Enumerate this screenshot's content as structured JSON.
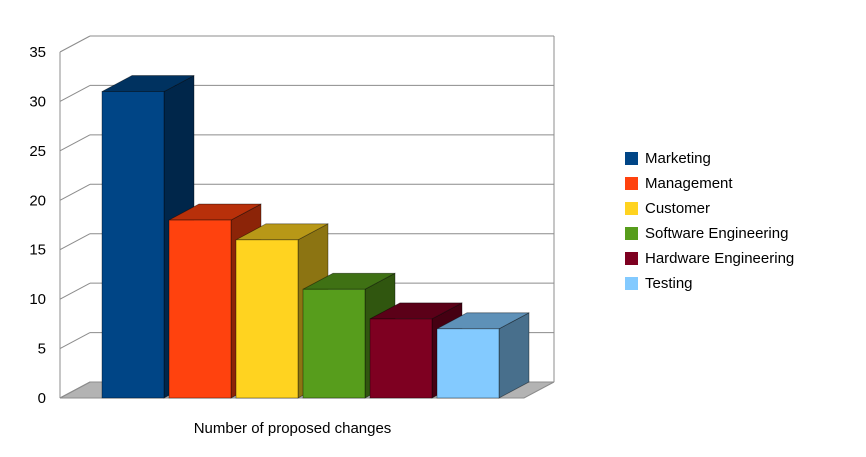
{
  "chart_data": {
    "type": "bar",
    "style": "3d",
    "categories": [
      "Marketing",
      "Management",
      "Customer",
      "Software Engineering",
      "Hardware Engineering",
      "Testing"
    ],
    "values": [
      31,
      18,
      16,
      11,
      8,
      7
    ],
    "colors": [
      "#004586",
      "#ff420e",
      "#ffd320",
      "#579d1c",
      "#7e0021",
      "#83caff"
    ],
    "title": "",
    "xlabel": "Number of proposed changes",
    "ylabel": "",
    "ylim": [
      0,
      35
    ],
    "yticks": [
      0,
      5,
      10,
      15,
      20,
      25,
      30,
      35
    ],
    "grid": true,
    "legend_position": "right",
    "floor_color": "#b3b3b3",
    "gridline_color": "#8c8c8c"
  }
}
